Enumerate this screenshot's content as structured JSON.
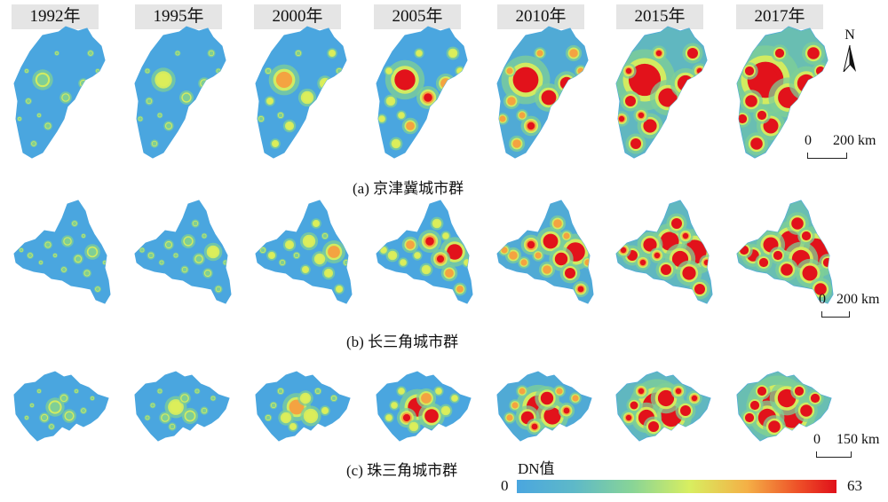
{
  "years": [
    "1992年",
    "1995年",
    "2000年",
    "2005年",
    "2010年",
    "2015年",
    "2017年"
  ],
  "regions": [
    {
      "caption": "(a) 京津冀城市群",
      "scale_zero": "0",
      "scale_text": "200 km"
    },
    {
      "caption": "(b) 长三角城市群",
      "scale_zero": "0",
      "scale_text": "200 km"
    },
    {
      "caption": "(c) 珠三角城市群",
      "scale_zero": "0",
      "scale_text": "150 km"
    }
  ],
  "north_label": "N",
  "legend": {
    "title": "DN值",
    "min": "0",
    "max": "63",
    "colors": [
      "#4aa6df",
      "#5eb9c8",
      "#88d497",
      "#d8ee60",
      "#f4b046",
      "#ee5028",
      "#e0101a"
    ]
  },
  "colors": {
    "base": "#4aa6df",
    "green": "#7fcf95",
    "yellow": "#dcee5a",
    "orange": "#f4a341",
    "red": "#e2121b",
    "label_box": "#e5e5e5"
  },
  "intensity_levels": [
    0.05,
    0.12,
    0.25,
    0.42,
    0.6,
    0.85,
    1.0
  ]
}
